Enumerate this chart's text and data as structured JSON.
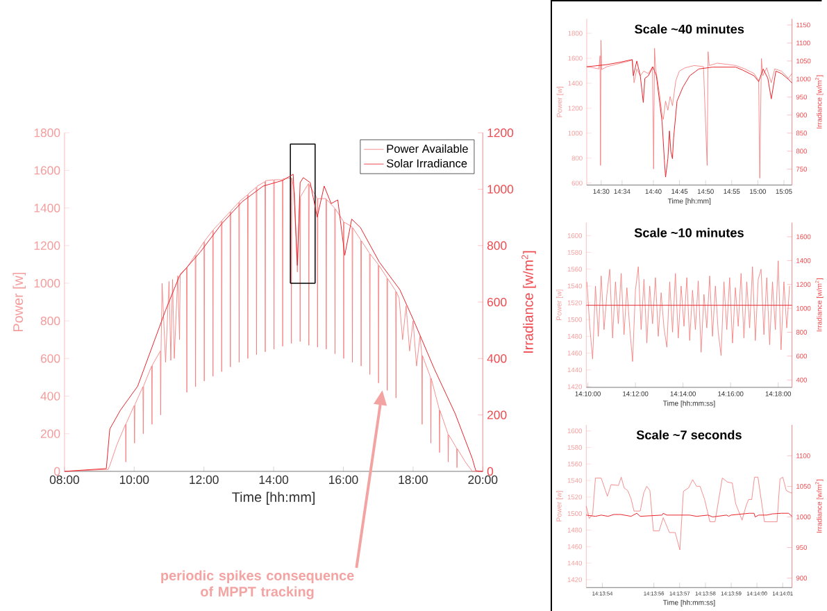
{
  "chart_data": [
    {
      "type": "line",
      "xlabel": "Time [hh:mm]",
      "ylabel": "Power [w]",
      "y2label": "Irradiance [w/m$^{2}$]",
      "legend": "top right",
      "xlim": [
        8,
        20
      ],
      "ylim": [
        0,
        1800
      ],
      "y2lim": [
        0,
        1200
      ],
      "xticks": [
        {
          "value": 8,
          "label": "08:00"
        },
        {
          "value": 10,
          "label": "10:00"
        },
        {
          "value": 12,
          "label": "12:00"
        },
        {
          "value": 14,
          "label": "14:00"
        },
        {
          "value": 16,
          "label": "16:00"
        },
        {
          "value": 18,
          "label": "18:00"
        },
        {
          "value": 20,
          "label": "20:00"
        }
      ],
      "yticks": [
        0,
        200,
        400,
        600,
        800,
        1000,
        1200,
        1400,
        1600,
        1800
      ],
      "y2ticks": [
        0,
        200,
        400,
        600,
        800,
        1000,
        1200
      ],
      "annotations": [
        "periodic spikes consequence of MPPT tracking"
      ],
      "series": [
        {
          "name": "Power Available",
          "color": "#f27878",
          "x": [
            8.0,
            9.25,
            9.3,
            9.5,
            9.75,
            9.76,
            9.77,
            10.0,
            10.01,
            10.02,
            10.25,
            10.26,
            10.27,
            10.5,
            10.51,
            10.52,
            10.75,
            10.76,
            10.77,
            10.8,
            10.9,
            11.0,
            11.05,
            11.1,
            11.15,
            11.25,
            11.3,
            11.32,
            11.5,
            11.51,
            11.52,
            11.75,
            11.76,
            11.77,
            12.0,
            12.01,
            12.02,
            12.25,
            12.26,
            12.27,
            12.5,
            12.51,
            12.52,
            12.75,
            12.76,
            12.77,
            13.0,
            13.01,
            13.02,
            13.25,
            13.26,
            13.27,
            13.5,
            13.51,
            13.52,
            13.75,
            13.76,
            13.77,
            14.0,
            14.01,
            14.02,
            14.25,
            14.26,
            14.27,
            14.5,
            14.51,
            14.52,
            14.6,
            14.68,
            14.75,
            14.76,
            14.77,
            15.0,
            15.01,
            15.02,
            15.25,
            15.26,
            15.27,
            15.5,
            15.51,
            15.52,
            15.75,
            15.76,
            15.77,
            16.0,
            16.01,
            16.02,
            16.25,
            16.26,
            16.27,
            16.5,
            16.51,
            16.52,
            16.75,
            16.76,
            16.77,
            17.0,
            17.01,
            17.02,
            17.25,
            17.26,
            17.27,
            17.5,
            17.51,
            17.52,
            17.6,
            17.7,
            17.8,
            17.9,
            18.0,
            18.1,
            18.2,
            18.25,
            18.26,
            18.27,
            18.5,
            18.51,
            18.52,
            18.75,
            18.76,
            18.77,
            19.0,
            19.01,
            19.02,
            19.25,
            19.26,
            19.27,
            19.5,
            19.7,
            20.0
          ],
          "values": [
            0,
            10,
            31,
            140,
            250,
            50,
            255,
            350,
            150,
            355,
            450,
            200,
            455,
            560,
            250,
            565,
            640,
            300,
            645,
            1000,
            580,
            1010,
            590,
            1020,
            600,
            1040,
            700,
            1050,
            1080,
            420,
            1085,
            1150,
            450,
            1155,
            1220,
            480,
            1225,
            1280,
            505,
            1285,
            1330,
            530,
            1335,
            1380,
            555,
            1385,
            1430,
            580,
            1435,
            1470,
            600,
            1475,
            1510,
            620,
            1515,
            1540,
            635,
            1545,
            1550,
            650,
            1550,
            1550,
            665,
            1555,
            1560,
            680,
            1560,
            1480,
            1060,
            1450,
            690,
            1460,
            1530,
            670,
            1525,
            1450,
            660,
            1450,
            1450,
            650,
            1445,
            1400,
            625,
            1395,
            1330,
            600,
            1325,
            1300,
            580,
            1295,
            1230,
            560,
            1225,
            1160,
            515,
            1155,
            1100,
            470,
            1095,
            1030,
            430,
            1025,
            960,
            390,
            955,
            920,
            700,
            880,
            640,
            800,
            560,
            720,
            620,
            250,
            615,
            500,
            150,
            495,
            330,
            100,
            325,
            200,
            50,
            195,
            123,
            20,
            120,
            50,
            0,
            0
          ]
        },
        {
          "type": "line",
          "color": "#000000",
          "x": [
            14.48,
            14.48,
            15.19,
            15.19
          ],
          "values": [
            1000,
            1740,
            1740,
            1000
          ]
        },
        {
          "type": "line",
          "color": "#000000",
          "x": [
            14.48,
            15.19
          ],
          "values": [
            1000,
            1000
          ]
        },
        {
          "name": "Solar Irradiance",
          "color": "#e8232a",
          "axis": "y2",
          "x": [
            8.0,
            9.2,
            9.3,
            9.6,
            10.1,
            10.9,
            11.3,
            11.9,
            12.5,
            13.1,
            13.7,
            14.26,
            14.56,
            14.68,
            14.76,
            14.85,
            15.05,
            15.25,
            15.45,
            15.65,
            15.84,
            16.04,
            16.24,
            16.49,
            17.03,
            17.62,
            18.02,
            18.61,
            19.21,
            19.7,
            19.8,
            20.0
          ],
          "values": [
            0,
            10,
            150,
            216,
            302,
            571,
            693,
            778,
            876,
            956,
            1011,
            1031,
            1053,
            730,
            1023,
            1041,
            1023,
            901,
            1011,
            949,
            962,
            766,
            894,
            864,
            742,
            644,
            534,
            363,
            204,
            45,
            2,
            0
          ]
        }
      ]
    },
    {
      "type": "line",
      "title": "Scale ~40 minutes",
      "xlabel": "Time [hh:mm]",
      "ylabel": "Power [w]",
      "y2label": "Irradiance [w/m$^{2}$]",
      "xlim": [
        14.4538,
        15.109
      ],
      "ylim": [
        585,
        1916
      ],
      "y2lim": [
        706,
        1167
      ],
      "xticks": [
        {
          "value": 14.5,
          "label": "14:30"
        },
        {
          "value": 14.566667,
          "label": "14:34"
        },
        {
          "value": 14.666667,
          "label": "14:40"
        },
        {
          "value": 14.75,
          "label": "14:45"
        },
        {
          "value": 14.833333,
          "label": "14:50"
        },
        {
          "value": 14.916667,
          "label": "14:55"
        },
        {
          "value": 15.0,
          "label": "15:00"
        },
        {
          "value": 15.083333,
          "label": "15:05"
        }
      ],
      "yticks": [
        600,
        800,
        1000,
        1200,
        1400,
        1600,
        1800
      ],
      "y2ticks": [
        750,
        800,
        850,
        900,
        950,
        1000,
        1050,
        1100,
        1150
      ],
      "series": [
        {
          "color": "#f27878",
          "x": [
            14.4538,
            14.4743,
            14.4927,
            14.4963,
            14.4978,
            14.4993,
            14.5015,
            14.5183,
            14.5477,
            14.577,
            14.599,
            14.6049,
            14.6137,
            14.6247,
            14.6357,
            14.6504,
            14.6636,
            14.6673,
            14.6702,
            14.6739,
            14.6797,
            14.6871,
            14.6944,
            14.6981,
            14.7054,
            14.7128,
            14.7201,
            14.7274,
            14.7384,
            14.7494,
            14.7678,
            14.7971,
            14.8265,
            14.8382,
            14.8412,
            14.8448,
            14.8705,
            14.8999,
            14.9292,
            14.9585,
            14.9879,
            15.0026,
            15.0062,
            15.0114,
            15.0158,
            15.0282,
            15.0429,
            15.0539,
            15.0759,
            15.0979,
            15.109
          ],
          "values": [
            1533,
            1524,
            1515,
            1620,
            742,
            1745,
            1510,
            1533,
            1552,
            1570,
            1585,
            1404,
            1515,
            1460,
            1497,
            1478,
            1533,
            714,
            1680,
            1515,
            1423,
            1294,
            1147,
            1110,
            1257,
            1184,
            1294,
            1220,
            1423,
            1497,
            1524,
            1542,
            1533,
            742,
            1653,
            1542,
            1561,
            1552,
            1542,
            1515,
            1478,
            1423,
            640,
            1598,
            1460,
            1524,
            1404,
            1515,
            1497,
            1441,
            1478
          ]
        },
        {
          "color": "#e8232a",
          "axis": "y2",
          "x": [
            14.4538,
            14.5183,
            14.5624,
            14.599,
            14.6027,
            14.6137,
            14.6247,
            14.6343,
            14.6394,
            14.6504,
            14.6651,
            14.6761,
            14.6871,
            14.6944,
            14.7018,
            14.7054,
            14.7128,
            14.7179,
            14.7223,
            14.7274,
            14.7311,
            14.7421,
            14.7605,
            14.7825,
            14.8118,
            14.8558,
            14.9292,
            14.9512,
            14.9879,
            15.0026,
            15.0172,
            15.0319,
            15.0429,
            15.0576,
            15.0759,
            15.0979,
            15.109
          ],
          "values": [
            1034,
            1040,
            1047,
            1054,
            1009,
            1050,
            1009,
            935,
            1002,
            1009,
            1034,
            1009,
            932,
            881,
            773,
            728,
            779,
            856,
            799,
            779,
            837,
            939,
            977,
            1009,
            1028,
            1033,
            1033,
            1025,
            1009,
            993,
            1028,
            1002,
            945,
            1022,
            1015,
            999,
            989
          ]
        }
      ]
    },
    {
      "type": "line",
      "title": "Scale ~10 minutes",
      "xlabel": "Time [hh:mm:ss]",
      "ylabel": "Power [w]",
      "y2label": "Irradiance [w/m$^{2}$]",
      "xlim": [
        14.16554,
        14.30966
      ],
      "ylim": [
        1419.2,
        1615.6
      ],
      "y2lim": [
        338,
        1719
      ],
      "xticks": [
        {
          "value": 14.166667,
          "label": "14:10:00"
        },
        {
          "value": 14.2,
          "label": "14:12:00"
        },
        {
          "value": 14.233333,
          "label": "14:14:00"
        },
        {
          "value": 14.266667,
          "label": "14:16:00"
        },
        {
          "value": 14.3,
          "label": "14:18:00"
        }
      ],
      "yticks": [
        1420,
        1440,
        1460,
        1480,
        1500,
        1520,
        1540,
        1560,
        1580,
        1600
      ],
      "y2ticks": [
        400,
        600,
        800,
        1000,
        1200,
        1400,
        1600
      ],
      "series": [
        {
          "color": "#f27878",
          "x": [
            14.166,
            14.168,
            14.17,
            14.172,
            14.174,
            14.176,
            14.178,
            14.18,
            14.182,
            14.184,
            14.186,
            14.188,
            14.19,
            14.192,
            14.194,
            14.196,
            14.198,
            14.2,
            14.202,
            14.204,
            14.206,
            14.208,
            14.21,
            14.212,
            14.214,
            14.216,
            14.218,
            14.22,
            14.222,
            14.224,
            14.226,
            14.228,
            14.23,
            14.232,
            14.234,
            14.236,
            14.238,
            14.24,
            14.242,
            14.244,
            14.246,
            14.248,
            14.25,
            14.252,
            14.254,
            14.256,
            14.258,
            14.26,
            14.262,
            14.264,
            14.266,
            14.268,
            14.27,
            14.272,
            14.274,
            14.276,
            14.278,
            14.28,
            14.282,
            14.284,
            14.286,
            14.288,
            14.29,
            14.292,
            14.294,
            14.296,
            14.298,
            14.3,
            14.302,
            14.304,
            14.306,
            14.308
          ],
          "values": [
            1545,
            1492,
            1453,
            1540,
            1480,
            1552,
            1488,
            1530,
            1560,
            1478,
            1545,
            1495,
            1555,
            1482,
            1538,
            1490,
            1450,
            1535,
            1563,
            1488,
            1548,
            1472,
            1540,
            1495,
            1550,
            1480,
            1532,
            1490,
            1467,
            1545,
            1485,
            1555,
            1478,
            1540,
            1492,
            1550,
            1475,
            1535,
            1488,
            1546,
            1461,
            1530,
            1490,
            1552,
            1480,
            1540,
            1485,
            1457,
            1545,
            1488,
            1550,
            1472,
            1538,
            1492,
            1555,
            1478,
            1545,
            1490,
            1563,
            1475,
            1548,
            1560,
            1482,
            1550,
            1470,
            1545,
            1488,
            1570,
            1464,
            1545,
            1490,
            1540
          ]
        },
        {
          "color": "#e8232a",
          "axis": "y2",
          "x": [
            14.16554,
            14.23,
            14.30966
          ],
          "values": [
            1026,
            1026,
            1026
          ]
        }
      ]
    },
    {
      "type": "line",
      "title": "Scale ~7 seconds",
      "xlabel": "Time [hh:mm:ss]",
      "ylabel": "Power [w]",
      "y2label": "Irradiance [w/m$^{2}$]",
      "xlim": [
        14.231493,
        14.233711
      ],
      "ylim": [
        1410.4,
        1607.4
      ],
      "y2lim": [
        884.5,
        1150.6
      ],
      "xticks": [
        {
          "value": 14.231667,
          "label": "14:13:54"
        },
        {
          "value": 14.232222,
          "label": "14:13:56"
        },
        {
          "value": 14.2325,
          "label": "14:13:57"
        },
        {
          "value": 14.232778,
          "label": "14:13:58"
        },
        {
          "value": 14.233056,
          "label": "14:13:59"
        },
        {
          "value": 14.233333,
          "label": "14:14:00"
        },
        {
          "value": 14.233611,
          "label": "14:14:01"
        }
      ],
      "yticks": [
        1420,
        1440,
        1460,
        1480,
        1500,
        1520,
        1540,
        1560,
        1580,
        1600
      ],
      "y2ticks": [
        900,
        950,
        1000,
        1050,
        1100
      ],
      "series": [
        {
          "color": "#f27878",
          "x": [
            14.231493,
            14.231525,
            14.231562,
            14.231592,
            14.231654,
            14.231721,
            14.231761,
            14.23184,
            14.23187,
            14.231902,
            14.231939,
            14.231976,
            14.232008,
            14.232075,
            14.232113,
            14.232145,
            14.232179,
            14.232217,
            14.232279,
            14.232323,
            14.23239,
            14.232452,
            14.232502,
            14.232541,
            14.232596,
            14.23264,
            14.232682,
            14.23272,
            14.232769,
            14.232826,
            14.232881,
            14.23296,
            14.233017,
            14.233067,
            14.233104,
            14.233173,
            14.233215,
            14.233243,
            14.233277,
            14.233307,
            14.233344,
            14.233414,
            14.23355,
            14.233582,
            14.233612,
            14.233649,
            14.233698,
            14.233711
          ],
          "values": [
            1509,
            1494,
            1499,
            1543,
            1543,
            1521,
            1535,
            1534,
            1544,
            1531,
            1528,
            1518,
            1503,
            1503,
            1525,
            1533,
            1528,
            1479,
            1479,
            1495,
            1477,
            1477,
            1456,
            1527,
            1531,
            1541,
            1533,
            1533,
            1517,
            1490,
            1490,
            1543,
            1538,
            1537,
            1512,
            1492,
            1509,
            1517,
            1517,
            1544,
            1544,
            1490,
            1490,
            1542,
            1544,
            1528,
            1525,
            1525
          ]
        },
        {
          "color": "#e8232a",
          "axis": "y2",
          "x": [
            14.231493,
            14.231592,
            14.231654,
            14.231728,
            14.23179,
            14.231865,
            14.231976,
            14.232038,
            14.232075,
            14.232311,
            14.232323,
            14.23236,
            14.232608,
            14.232682,
            14.232806,
            14.232856,
            14.233005,
            14.233029,
            14.233054,
            14.233252,
            14.233302,
            14.233314,
            14.233352,
            14.233438,
            14.2335,
            14.233599,
            14.233674,
            14.233711
          ],
          "values": [
            1003,
            1001,
            1003,
            1001,
            1004,
            1004,
            1001,
            1006,
            1001,
            1003,
            1006,
            1003,
            1003,
            1001,
            1003,
            1000,
            1003,
            1001,
            1003,
            1006,
            1006,
            1000,
            1003,
            1003,
            1005,
            1006,
            1006,
            1001
          ]
        }
      ]
    }
  ]
}
